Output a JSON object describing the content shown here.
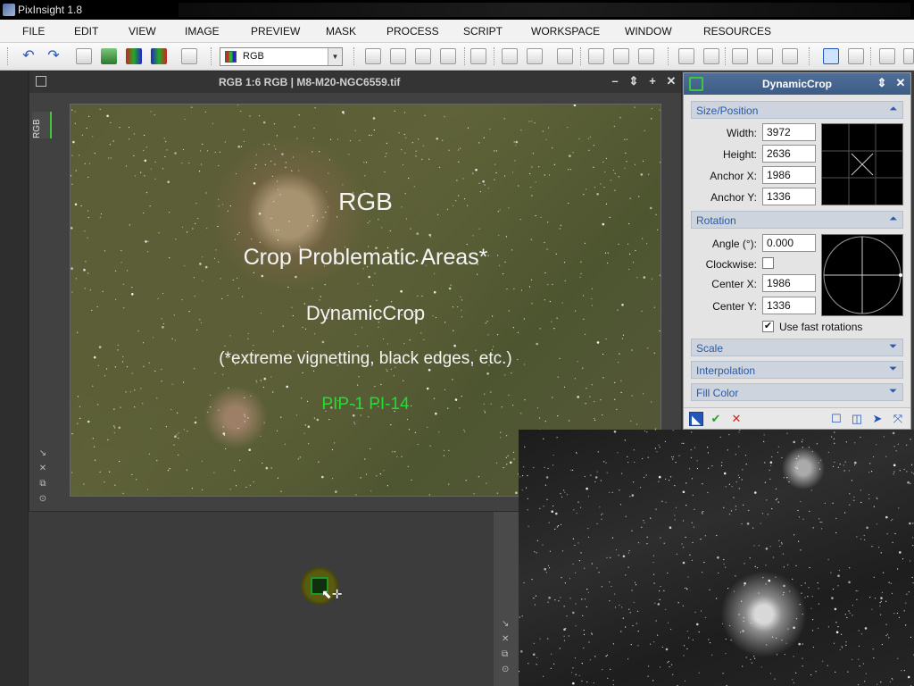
{
  "window": {
    "title": "PixInsight 1.8"
  },
  "menu": [
    "FILE",
    "EDIT",
    "VIEW",
    "IMAGE",
    "PREVIEW",
    "MASK",
    "PROCESS",
    "SCRIPT",
    "WORKSPACE",
    "WINDOW",
    "RESOURCES"
  ],
  "toolbar": {
    "channel_select": "RGB",
    "undo_icon": "undo-icon",
    "redo_icon": "redo-icon"
  },
  "image_window": {
    "title": "RGB 1:6 RGB | M8-M20-NGC6559.tif",
    "side_tab": "RGB",
    "overlay": {
      "line1": "RGB",
      "line2": "Crop Problematic Areas*",
      "line3": "DynamicCrop",
      "line4": "(*extreme vignetting, black edges, etc.)",
      "line5": "PIP-1 PI-14",
      "line5_color": "#22dd33"
    }
  },
  "dynamic_crop": {
    "title": "DynamicCrop",
    "size_position": {
      "header": "Size/Position",
      "width_label": "Width:",
      "width": "3972",
      "height_label": "Height:",
      "height": "2636",
      "anchor_x_label": "Anchor X:",
      "anchor_x": "1986",
      "anchor_y_label": "Anchor Y:",
      "anchor_y": "1336"
    },
    "rotation": {
      "header": "Rotation",
      "angle_label": "Angle (°):",
      "angle": "0.000",
      "clockwise_label": "Clockwise:",
      "clockwise": false,
      "center_x_label": "Center X:",
      "center_x": "1986",
      "center_y_label": "Center Y:",
      "center_y": "1336",
      "fast_rotations_label": "Use fast rotations",
      "fast_rotations": true
    },
    "collapsed_sections": [
      "Scale",
      "Interpolation",
      "Fill Color"
    ]
  },
  "colors": {
    "panel_title_bg": "#3c5c85",
    "section_text": "#2b59a6",
    "accent_green": "#3cc83c"
  }
}
